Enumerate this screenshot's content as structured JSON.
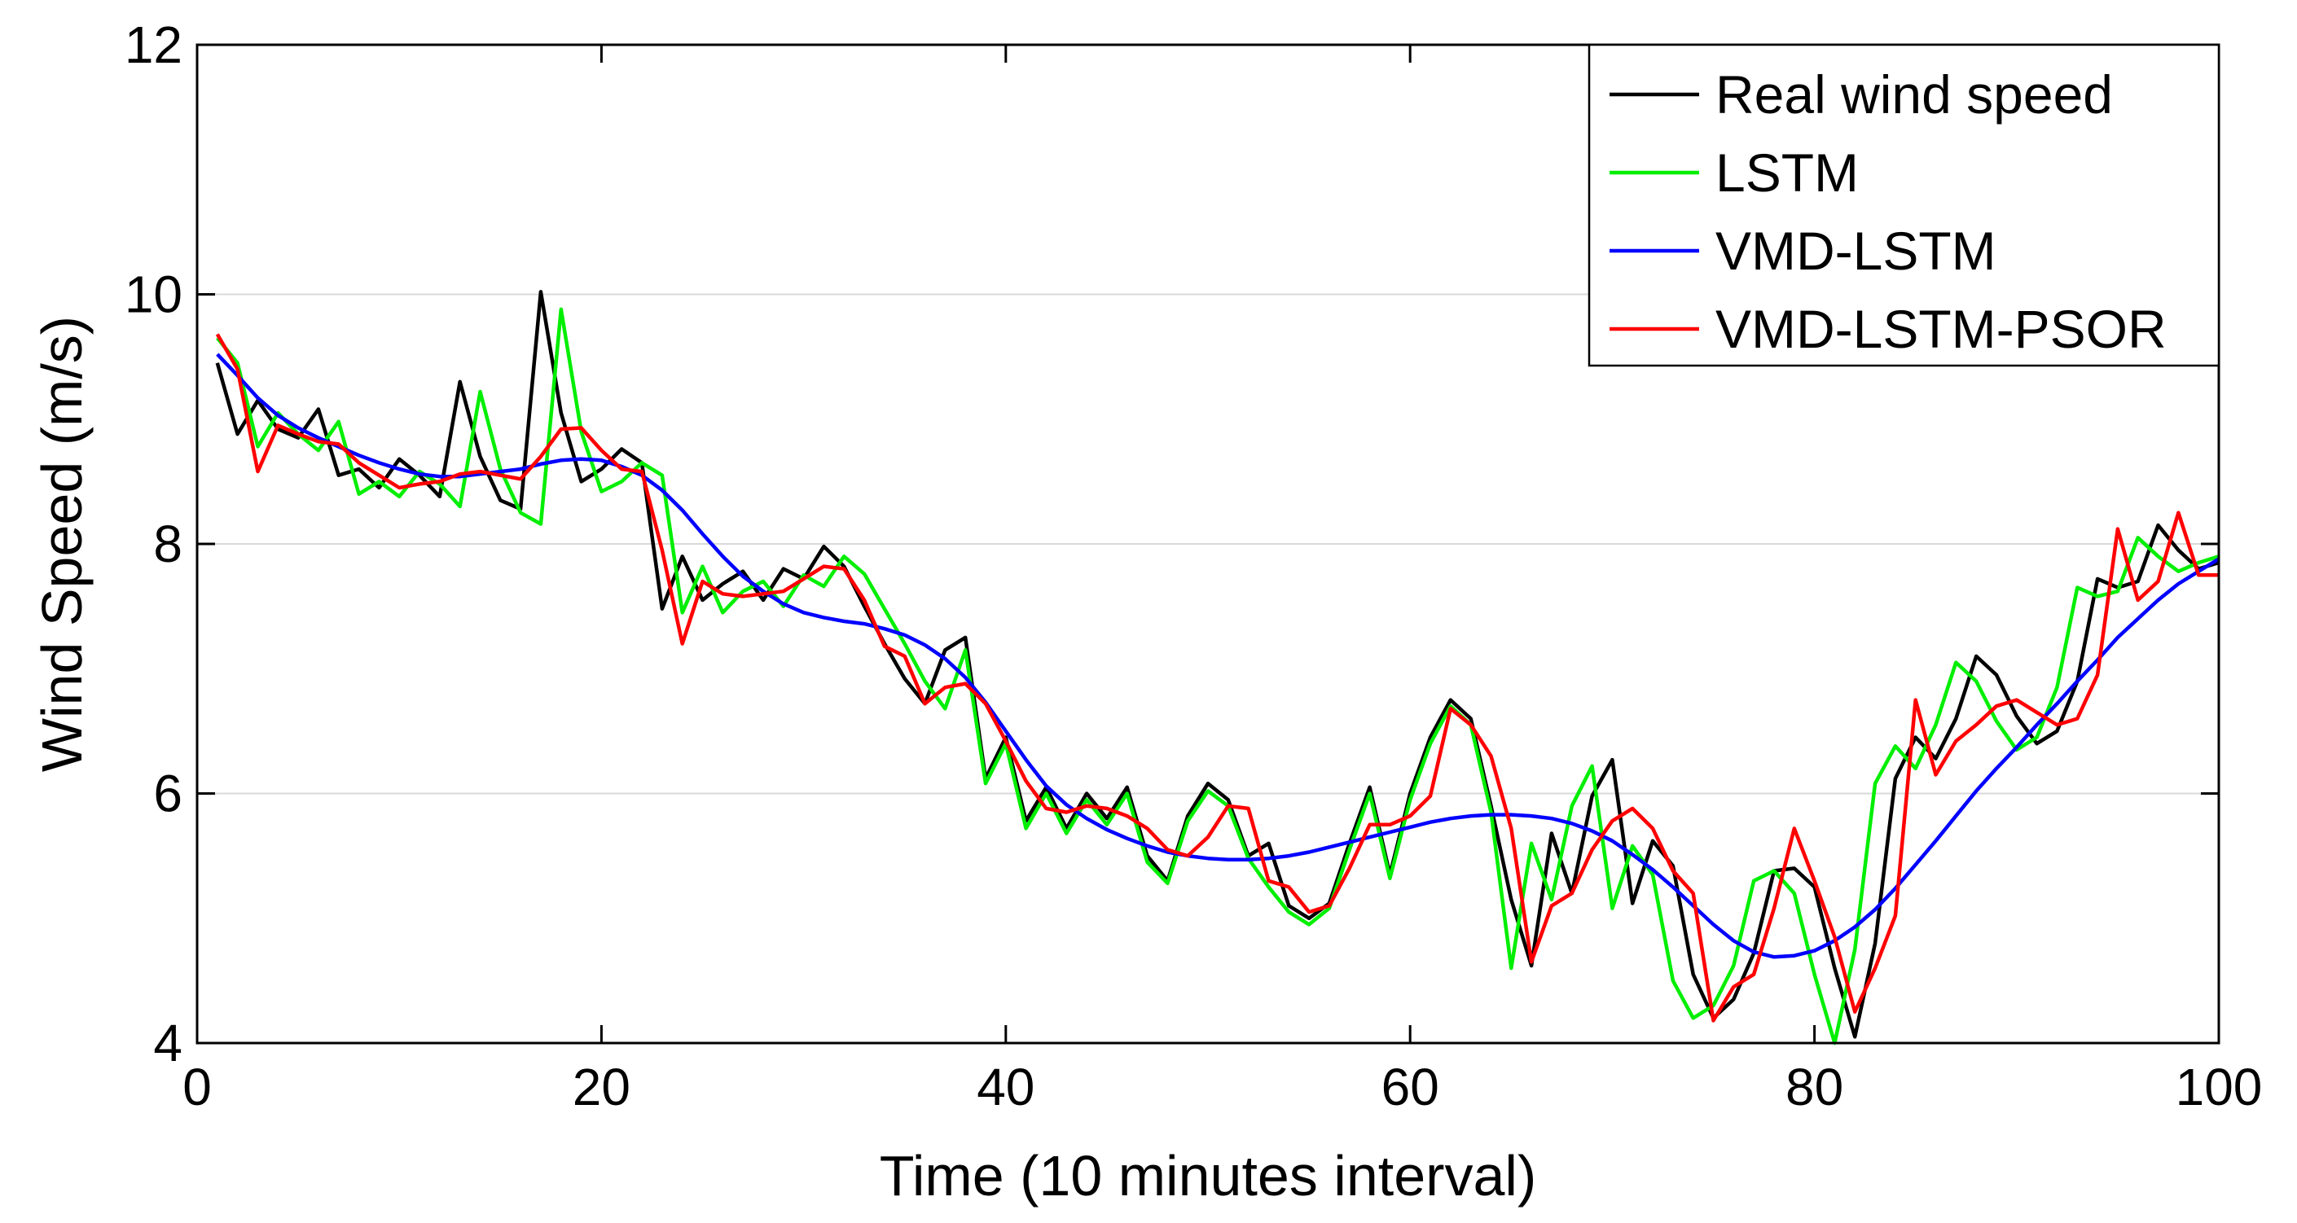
{
  "chart_data": {
    "type": "line",
    "title": "",
    "xlabel": "Time (10 minutes interval)",
    "ylabel": "Wind Speed (m/s)",
    "xlim": [
      0,
      100
    ],
    "ylim": [
      4,
      12
    ],
    "xticks": [
      0,
      20,
      40,
      60,
      80,
      100
    ],
    "yticks": [
      4,
      6,
      8,
      10,
      12
    ],
    "grid": "horizontal",
    "legend_position": "top-right",
    "series": [
      {
        "name": "Real wind speed",
        "color": "#000000",
        "x": [
          1,
          2,
          3,
          4,
          5,
          6,
          7,
          8,
          9,
          10,
          11,
          12,
          13,
          14,
          15,
          16,
          17,
          18,
          19,
          20,
          21,
          22,
          23,
          24,
          25,
          26,
          27,
          28,
          29,
          30,
          31,
          32,
          33,
          34,
          35,
          36,
          37,
          38,
          39,
          40,
          41,
          42,
          43,
          44,
          45,
          46,
          47,
          48,
          49,
          50,
          51,
          52,
          53,
          54,
          55,
          56,
          57,
          58,
          59,
          60,
          61,
          62,
          63,
          64,
          65,
          66,
          67,
          68,
          69,
          70,
          71,
          72,
          73,
          74,
          75,
          76,
          77,
          78,
          79,
          80,
          81,
          82,
          83,
          84,
          85,
          86,
          87,
          88,
          89,
          90,
          91,
          92,
          93,
          94,
          95,
          96,
          97,
          98,
          99,
          100
        ],
        "values": [
          9.45,
          8.88,
          9.15,
          8.92,
          8.85,
          9.08,
          8.55,
          8.6,
          8.45,
          8.68,
          8.55,
          8.38,
          9.3,
          8.7,
          8.35,
          8.28,
          10.02,
          9.05,
          8.5,
          8.6,
          8.76,
          8.65,
          7.48,
          7.9,
          7.55,
          7.68,
          7.78,
          7.55,
          7.8,
          7.72,
          7.98,
          7.82,
          7.5,
          7.2,
          6.92,
          6.72,
          7.15,
          7.25,
          6.12,
          6.45,
          5.78,
          6.05,
          5.72,
          6.0,
          5.8,
          6.05,
          5.5,
          5.3,
          5.82,
          6.08,
          5.95,
          5.5,
          5.6,
          5.1,
          5.0,
          5.12,
          5.6,
          6.05,
          5.35,
          6.0,
          6.45,
          6.75,
          6.6,
          5.9,
          5.15,
          4.62,
          5.68,
          5.2,
          5.98,
          6.27,
          5.12,
          5.62,
          5.42,
          4.55,
          4.2,
          4.35,
          4.72,
          5.38,
          5.4,
          5.25,
          4.6,
          4.05,
          4.8,
          6.12,
          6.45,
          6.28,
          6.6,
          7.1,
          6.95,
          6.62,
          6.4,
          6.5,
          6.9,
          7.72,
          7.65,
          7.7,
          8.15,
          7.95,
          7.8,
          7.85
        ]
      },
      {
        "name": "LSTM",
        "color": "#00ee00",
        "x": [
          1,
          2,
          3,
          4,
          5,
          6,
          7,
          8,
          9,
          10,
          11,
          12,
          13,
          14,
          15,
          16,
          17,
          18,
          19,
          20,
          21,
          22,
          23,
          24,
          25,
          26,
          27,
          28,
          29,
          30,
          31,
          32,
          33,
          34,
          35,
          36,
          37,
          38,
          39,
          40,
          41,
          42,
          43,
          44,
          45,
          46,
          47,
          48,
          49,
          50,
          51,
          52,
          53,
          54,
          55,
          56,
          57,
          58,
          59,
          60,
          61,
          62,
          63,
          64,
          65,
          66,
          67,
          68,
          69,
          70,
          71,
          72,
          73,
          74,
          75,
          76,
          77,
          78,
          79,
          80,
          81,
          82,
          83,
          84,
          85,
          86,
          87,
          88,
          89,
          90,
          91,
          92,
          93,
          94,
          95,
          96,
          97,
          98,
          99,
          100
        ],
        "values": [
          9.65,
          9.45,
          8.78,
          9.05,
          8.88,
          8.75,
          8.98,
          8.4,
          8.5,
          8.38,
          8.58,
          8.48,
          8.3,
          9.22,
          8.6,
          8.25,
          8.16,
          9.88,
          8.9,
          8.42,
          8.5,
          8.65,
          8.55,
          7.45,
          7.82,
          7.45,
          7.62,
          7.7,
          7.5,
          7.75,
          7.66,
          7.9,
          7.76,
          7.48,
          7.2,
          6.9,
          6.68,
          7.15,
          6.08,
          6.4,
          5.72,
          6.0,
          5.68,
          5.95,
          5.75,
          6.0,
          5.45,
          5.28,
          5.78,
          6.02,
          5.9,
          5.48,
          5.25,
          5.05,
          4.95,
          5.08,
          5.55,
          6.0,
          5.32,
          5.95,
          6.4,
          6.7,
          6.55,
          5.85,
          4.6,
          5.6,
          5.15,
          5.9,
          6.22,
          5.08,
          5.58,
          5.35,
          4.5,
          4.2,
          4.3,
          4.62,
          5.3,
          5.38,
          5.2,
          4.55,
          4.0,
          4.75,
          6.08,
          6.38,
          6.2,
          6.55,
          7.05,
          6.9,
          6.58,
          6.35,
          6.45,
          6.85,
          7.65,
          7.58,
          7.62,
          8.05,
          7.9,
          7.78,
          7.85,
          7.9
        ]
      },
      {
        "name": "VMD-LSTM",
        "color": "#0000ff",
        "x": [
          1,
          2,
          3,
          4,
          5,
          6,
          7,
          8,
          9,
          10,
          11,
          12,
          13,
          14,
          15,
          16,
          17,
          18,
          19,
          20,
          21,
          22,
          23,
          24,
          25,
          26,
          27,
          28,
          29,
          30,
          31,
          32,
          33,
          34,
          35,
          36,
          37,
          38,
          39,
          40,
          41,
          42,
          43,
          44,
          45,
          46,
          47,
          48,
          49,
          50,
          51,
          52,
          53,
          54,
          55,
          56,
          57,
          58,
          59,
          60,
          61,
          62,
          63,
          64,
          65,
          66,
          67,
          68,
          69,
          70,
          71,
          72,
          73,
          74,
          75,
          76,
          77,
          78,
          79,
          80,
          81,
          82,
          83,
          84,
          85,
          86,
          87,
          88,
          89,
          90,
          91,
          92,
          93,
          94,
          95,
          96,
          97,
          98,
          99,
          100
        ],
        "values": [
          9.52,
          9.35,
          9.17,
          9.03,
          8.93,
          8.85,
          8.78,
          8.71,
          8.65,
          8.6,
          8.56,
          8.54,
          8.54,
          8.56,
          8.58,
          8.6,
          8.64,
          8.67,
          8.68,
          8.67,
          8.62,
          8.55,
          8.43,
          8.27,
          8.08,
          7.9,
          7.74,
          7.62,
          7.52,
          7.45,
          7.41,
          7.38,
          7.36,
          7.32,
          7.27,
          7.19,
          7.08,
          6.93,
          6.73,
          6.5,
          6.27,
          6.06,
          5.91,
          5.8,
          5.71,
          5.64,
          5.58,
          5.53,
          5.5,
          5.48,
          5.47,
          5.47,
          5.48,
          5.5,
          5.53,
          5.57,
          5.61,
          5.65,
          5.69,
          5.73,
          5.77,
          5.8,
          5.82,
          5.83,
          5.83,
          5.82,
          5.8,
          5.76,
          5.7,
          5.62,
          5.51,
          5.39,
          5.25,
          5.1,
          4.95,
          4.82,
          4.73,
          4.69,
          4.7,
          4.74,
          4.82,
          4.93,
          5.07,
          5.24,
          5.43,
          5.62,
          5.82,
          6.02,
          6.2,
          6.37,
          6.55,
          6.72,
          6.9,
          7.07,
          7.25,
          7.4,
          7.55,
          7.68,
          7.78,
          7.88
        ]
      },
      {
        "name": "VMD-LSTM-PSOR",
        "color": "#ff0000",
        "x": [
          1,
          2,
          3,
          4,
          5,
          6,
          7,
          8,
          9,
          10,
          11,
          12,
          13,
          14,
          15,
          16,
          17,
          18,
          19,
          20,
          21,
          22,
          23,
          24,
          25,
          26,
          27,
          28,
          29,
          30,
          31,
          32,
          33,
          34,
          35,
          36,
          37,
          38,
          39,
          40,
          41,
          42,
          43,
          44,
          45,
          46,
          47,
          48,
          49,
          50,
          51,
          52,
          53,
          54,
          55,
          56,
          57,
          58,
          59,
          60,
          61,
          62,
          63,
          64,
          65,
          66,
          67,
          68,
          69,
          70,
          71,
          72,
          73,
          74,
          75,
          76,
          77,
          78,
          79,
          80,
          81,
          82,
          83,
          84,
          85,
          86,
          87,
          88,
          89,
          90,
          91,
          92,
          93,
          94,
          95,
          96,
          97,
          98,
          99,
          100
        ],
        "values": [
          9.68,
          9.4,
          8.58,
          8.95,
          8.88,
          8.82,
          8.8,
          8.65,
          8.55,
          8.45,
          8.48,
          8.5,
          8.56,
          8.58,
          8.55,
          8.52,
          8.7,
          8.92,
          8.93,
          8.75,
          8.6,
          8.58,
          7.95,
          7.2,
          7.7,
          7.6,
          7.58,
          7.6,
          7.62,
          7.72,
          7.82,
          7.8,
          7.55,
          7.18,
          7.1,
          6.72,
          6.85,
          6.88,
          6.72,
          6.42,
          6.1,
          5.88,
          5.85,
          5.9,
          5.88,
          5.82,
          5.72,
          5.55,
          5.5,
          5.65,
          5.9,
          5.88,
          5.3,
          5.25,
          5.05,
          5.1,
          5.4,
          5.75,
          5.75,
          5.82,
          5.98,
          6.68,
          6.55,
          6.3,
          5.72,
          4.65,
          5.1,
          5.2,
          5.55,
          5.78,
          5.88,
          5.72,
          5.38,
          5.2,
          4.18,
          4.45,
          4.55,
          5.08,
          5.72,
          5.3,
          4.85,
          4.25,
          4.6,
          5.02,
          6.75,
          6.15,
          6.42,
          6.55,
          6.7,
          6.75,
          6.65,
          6.55,
          6.6,
          6.95,
          8.12,
          7.55,
          7.7,
          8.25,
          7.75,
          7.75
        ]
      }
    ]
  }
}
